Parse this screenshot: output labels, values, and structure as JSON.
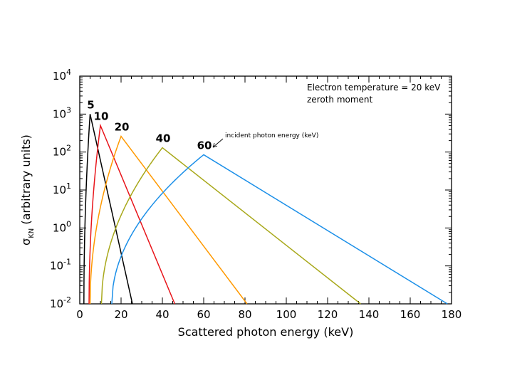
{
  "chart_data": {
    "type": "line",
    "xlabel": "Scattered photon energy (keV)",
    "ylabel_main": "σ",
    "ylabel_sub": "KN",
    "ylabel_rest": " (arbitrary units)",
    "xlim": [
      0,
      180
    ],
    "ylim_log10": [
      -2,
      4
    ],
    "yscale": "log",
    "x_ticks": [
      0,
      20,
      40,
      60,
      80,
      100,
      120,
      140,
      160,
      180
    ],
    "y_ticks": [
      {
        "base": "10",
        "exp": "-2"
      },
      {
        "base": "10",
        "exp": "-1"
      },
      {
        "base": "10",
        "exp": "0"
      },
      {
        "base": "10",
        "exp": "1"
      },
      {
        "base": "10",
        "exp": "2"
      },
      {
        "base": "10",
        "exp": "3"
      },
      {
        "base": "10",
        "exp": "4"
      }
    ],
    "annotation_line1": "Electron temperature = 20 keV",
    "annotation_line2": "zeroth moment",
    "arrow_annotation": "incident photon energy (keV)",
    "series": [
      {
        "label": "5",
        "color": "#000000",
        "start": 2.0,
        "peak_x": 5,
        "peak_y": 1000,
        "end": 25.5,
        "rise": 0.5
      },
      {
        "label": "10",
        "color": "#e8151b",
        "start": 4.5,
        "peak_x": 10,
        "peak_y": 500,
        "end": 46.0,
        "rise": 0.5
      },
      {
        "label": "20",
        "color": "#ff9900",
        "start": 5.0,
        "peak_x": 20,
        "peak_y": 260,
        "end": 81.0,
        "rise": 0.5
      },
      {
        "label": "40",
        "color": "#a8a81a",
        "start": 10.5,
        "peak_x": 40,
        "peak_y": 130,
        "end": 136.0,
        "rise": 0.5
      },
      {
        "label": "60",
        "color": "#1b8fe8",
        "start": 15.5,
        "peak_x": 60,
        "peak_y": 85,
        "end": 178.0,
        "rise": 0.5
      }
    ]
  }
}
